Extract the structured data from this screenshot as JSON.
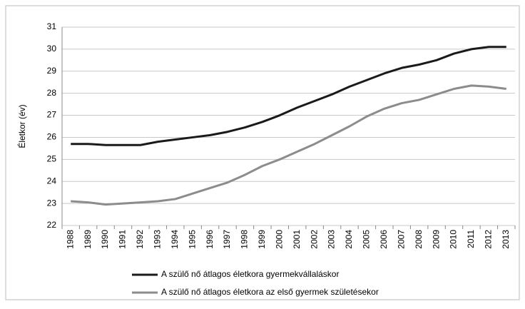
{
  "chart_data": {
    "type": "line",
    "y_label": "Életkor (év)",
    "categories": [
      "1988",
      "1989",
      "1990",
      "1991",
      "1992",
      "1993",
      "1994",
      "1995",
      "1996",
      "1997",
      "1998",
      "1999",
      "2000",
      "2001",
      "2002",
      "2003",
      "2004",
      "2005",
      "2006",
      "2007",
      "2008",
      "2009",
      "2010",
      "2011",
      "2012",
      "2013"
    ],
    "series": [
      {
        "name": "A szülő nő átlagos életkora gyermekvállaláskor",
        "color": "#1a1a1a",
        "values": [
          25.7,
          25.7,
          25.65,
          25.65,
          25.65,
          25.8,
          25.9,
          26.0,
          26.1,
          26.25,
          26.45,
          26.7,
          27.0,
          27.35,
          27.65,
          27.95,
          28.3,
          28.6,
          28.9,
          29.15,
          29.3,
          29.5,
          29.8,
          30.0,
          30.1,
          30.1
        ]
      },
      {
        "name": "A szülő nő átlagos életkora az első gyermek születésekor",
        "color": "#8c8c8c",
        "values": [
          23.1,
          23.05,
          22.95,
          23.0,
          23.05,
          23.1,
          23.2,
          23.45,
          23.7,
          23.95,
          24.3,
          24.7,
          25.0,
          25.35,
          25.7,
          26.1,
          26.5,
          26.95,
          27.3,
          27.55,
          27.7,
          27.95,
          28.2,
          28.35,
          28.3,
          28.2
        ]
      }
    ],
    "ylim": [
      22,
      31
    ],
    "yticks": [
      22,
      23,
      24,
      25,
      26,
      27,
      28,
      29,
      30,
      31
    ],
    "grid": true,
    "legend": "bottom"
  }
}
